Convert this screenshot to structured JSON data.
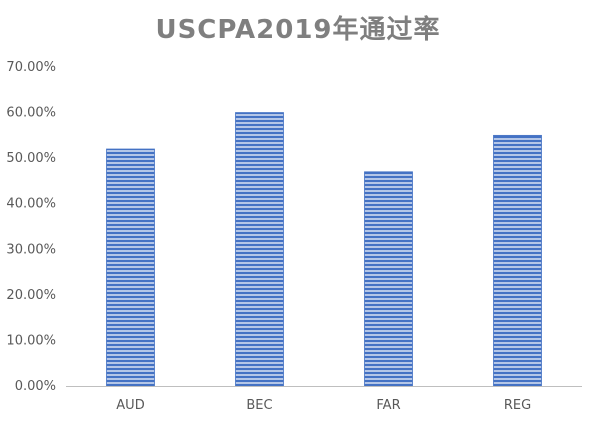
{
  "chart_data": {
    "type": "bar",
    "title": "USCPA2019年通过率",
    "categories": [
      "AUD",
      "BEC",
      "FAR",
      "REG"
    ],
    "series": [
      {
        "values": [
          0.52,
          0.6,
          0.47,
          0.55
        ]
      }
    ],
    "ylim": [
      0,
      0.7
    ],
    "ytick_labels": [
      "0.00%",
      "10.00%",
      "20.00%",
      "30.00%",
      "40.00%",
      "50.00%",
      "60.00%",
      "70.00%"
    ],
    "grid": false,
    "legend": "none",
    "bar_color": "#4472c4",
    "bar_stripe_color": "#ffffff",
    "axis_color": "#bfbfbf"
  }
}
